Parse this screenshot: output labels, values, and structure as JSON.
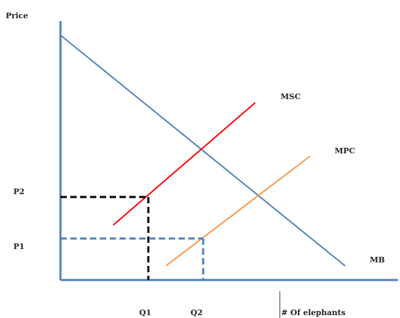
{
  "diagram": {
    "y_axis_label": "Price",
    "x_axis_label": "# Of elephants",
    "curves": {
      "msc": "MSC",
      "mpc": "MPC",
      "mb": "MB"
    },
    "price_ticks": {
      "p2": "P2",
      "p1": "P1"
    },
    "quantity_ticks": {
      "q1": "Q1",
      "q2": "Q2"
    },
    "colors": {
      "axis": "#4f81bd",
      "mb": "#4f81bd",
      "msc": "#ff0000",
      "mpc": "#f79646",
      "guide_black": "#000000",
      "guide_blue": "#4f81bd"
    }
  }
}
